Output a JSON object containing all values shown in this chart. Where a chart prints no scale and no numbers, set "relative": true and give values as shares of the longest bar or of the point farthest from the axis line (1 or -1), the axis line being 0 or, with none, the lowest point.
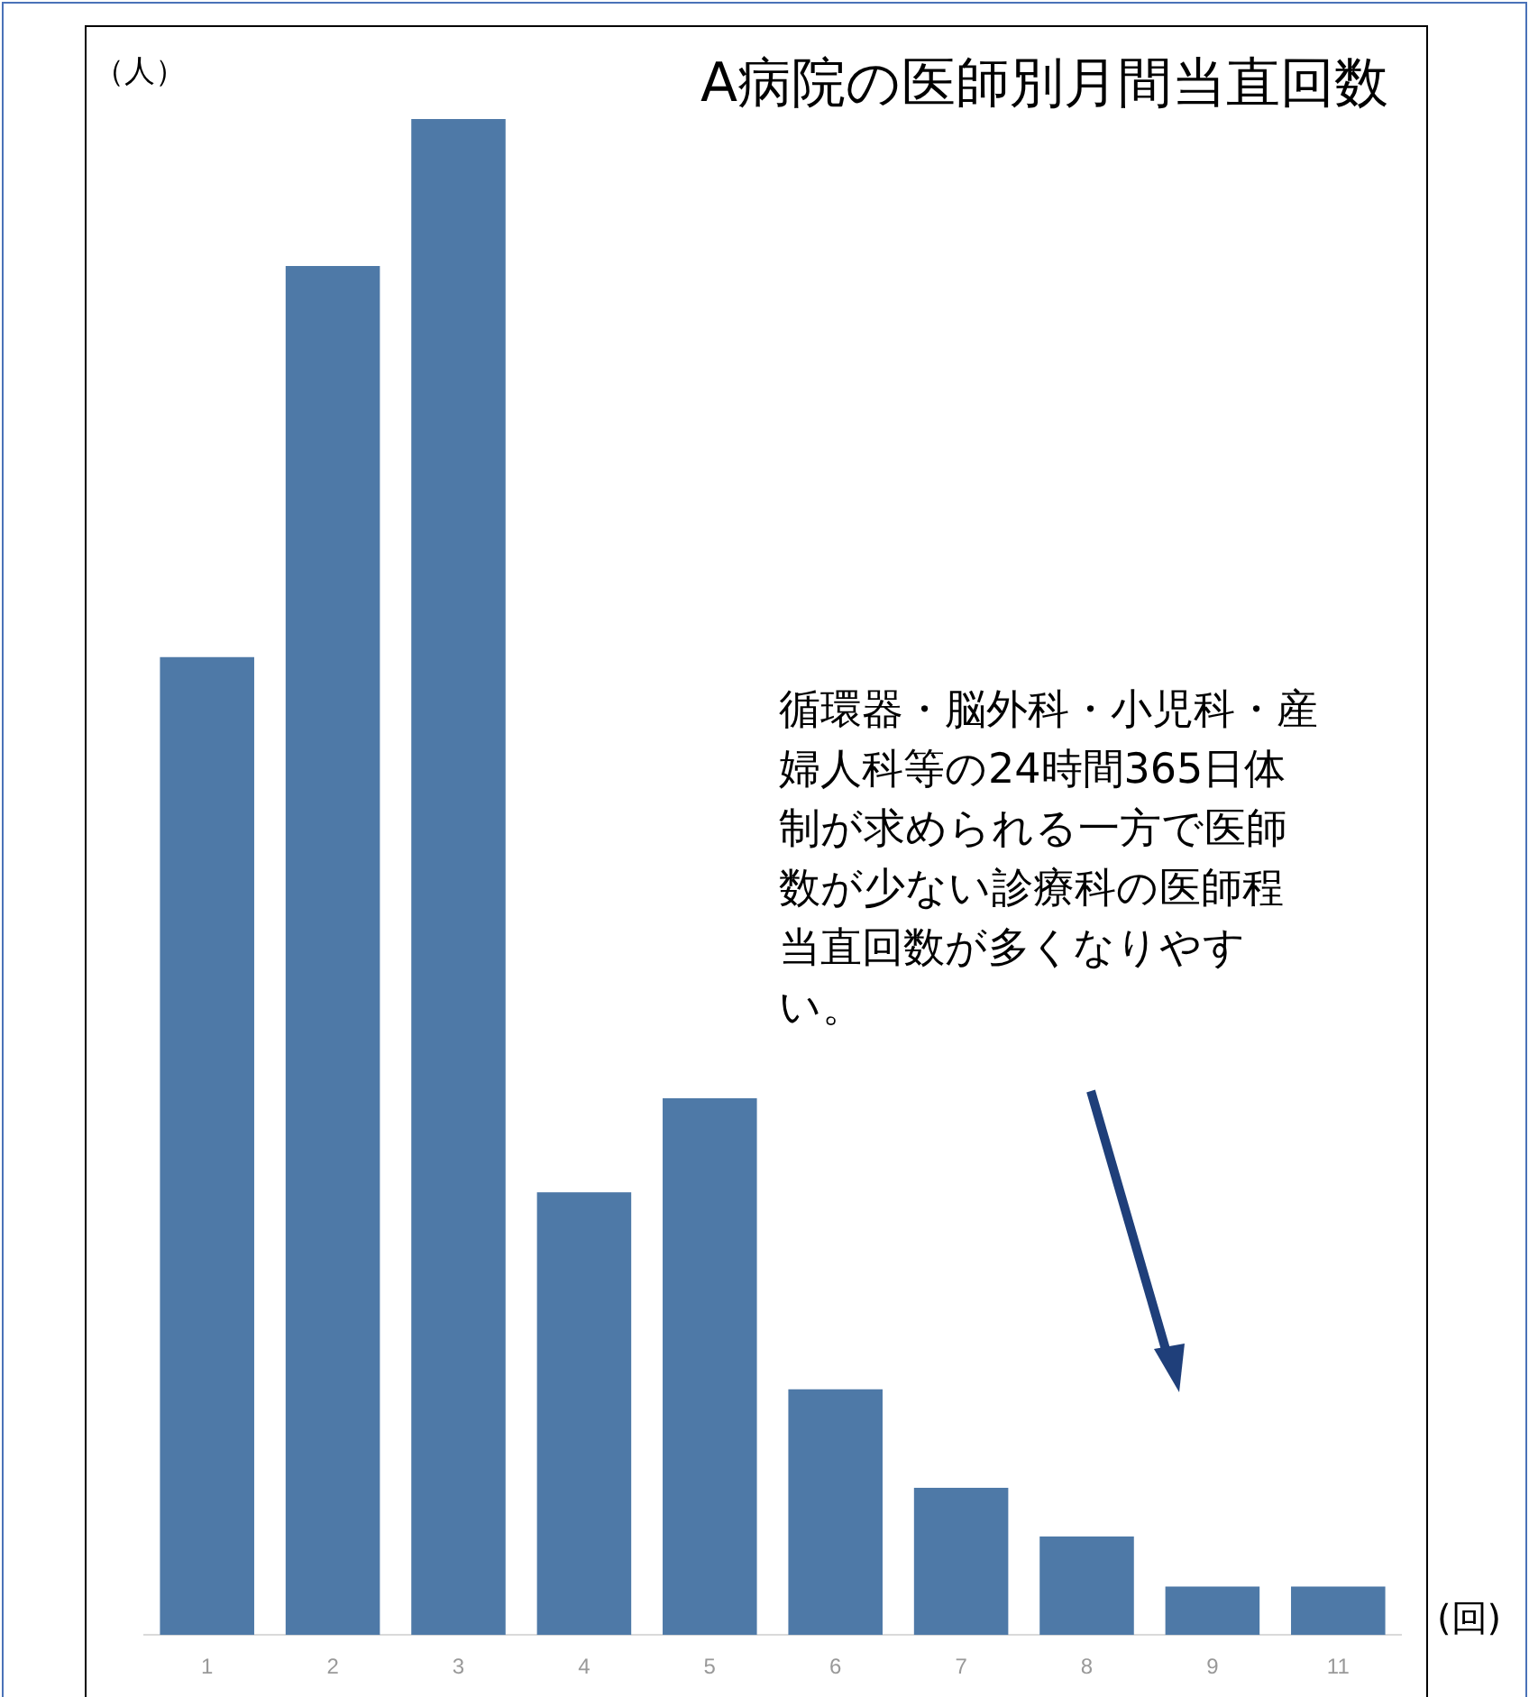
{
  "chart_data": {
    "type": "bar",
    "title": "A病院の医師別月間当直回数",
    "ylabel": "（人）",
    "xlabel": "(回)",
    "categories": [
      "1",
      "2",
      "3",
      "4",
      "5",
      "6",
      "7",
      "8",
      "9",
      "11"
    ],
    "values": [
      0.645,
      0.903,
      1,
      0.292,
      0.354,
      0.162,
      0.097,
      0.065,
      0.032,
      0.032
    ],
    "color": "#4e79a7",
    "relative": true,
    "legend": false,
    "annotations": [
      "循環器・脳外科・小児科・産婦人科等の24時間365日体制が求められる一方で医師数が少ない診療科の医師程当直回数が多くなりやすい。"
    ]
  }
}
